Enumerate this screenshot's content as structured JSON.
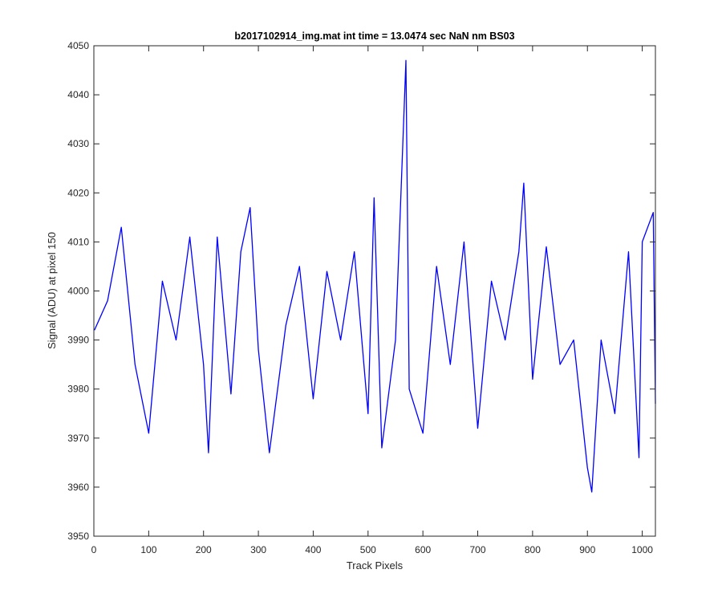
{
  "chart_data": {
    "type": "line",
    "title": "b2017102914_img.mat int time = 13.0474 sec  NaN nm BS03",
    "xlabel": "Track Pixels",
    "ylabel": "Signal (ADU) at pixel 150",
    "xlim": [
      0,
      1024
    ],
    "ylim": [
      3950,
      4050
    ],
    "xticks": [
      0,
      100,
      200,
      300,
      400,
      500,
      600,
      700,
      800,
      900,
      1000
    ],
    "yticks": [
      3950,
      3960,
      3970,
      3980,
      3990,
      4000,
      4010,
      4020,
      4030,
      4040,
      4050
    ],
    "grid": false,
    "legend": "none",
    "series": [
      {
        "color": "#0000ff",
        "x": [
          1,
          25,
          50,
          75,
          100,
          125,
          150,
          175,
          200,
          209,
          225,
          250,
          268,
          285,
          300,
          320,
          350,
          375,
          400,
          425,
          450,
          475,
          500,
          511,
          525,
          550,
          569,
          575,
          600,
          625,
          650,
          675,
          700,
          725,
          750,
          775,
          784,
          800,
          825,
          850,
          875,
          900,
          908,
          925,
          950,
          975,
          994,
          1000,
          1020,
          1024
        ],
        "y": [
          3992,
          3998,
          4013,
          3985,
          3971,
          4002,
          3990,
          4011,
          3985,
          3967,
          4011,
          3979,
          4008,
          4017,
          3988,
          3967,
          3993,
          4005,
          3978,
          4004,
          3990,
          4008,
          3975,
          4019,
          3968,
          3990,
          4047,
          3980,
          3971,
          4005,
          3985,
          4010,
          3972,
          4002,
          3990,
          4008,
          4022,
          3982,
          4009,
          3985,
          3990,
          3964,
          3959,
          3990,
          3975,
          4008,
          3966,
          4010,
          4016,
          3977
        ]
      }
    ]
  }
}
